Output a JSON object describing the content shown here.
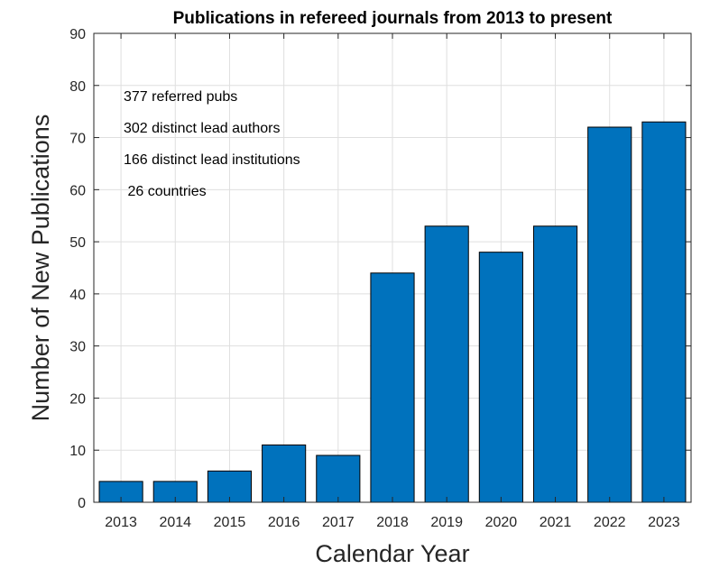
{
  "chart_data": {
    "type": "bar",
    "title": "Publications in refereed journals from 2013 to present",
    "xlabel": "Calendar Year",
    "ylabel": "Number of New Publications",
    "categories": [
      "2013",
      "2014",
      "2015",
      "2016",
      "2017",
      "2018",
      "2019",
      "2020",
      "2021",
      "2022",
      "2023"
    ],
    "values": [
      4,
      4,
      6,
      11,
      9,
      44,
      53,
      48,
      53,
      72,
      73
    ],
    "ylim": [
      0,
      90
    ],
    "yticks": [
      0,
      10,
      20,
      30,
      40,
      50,
      60,
      70,
      80,
      90
    ],
    "grid": true,
    "bar_color": "#0072BD",
    "annotations": [
      "377 referred pubs",
      "302 distinct lead authors",
      "166 distinct lead institutions",
      " 26 countries"
    ]
  }
}
